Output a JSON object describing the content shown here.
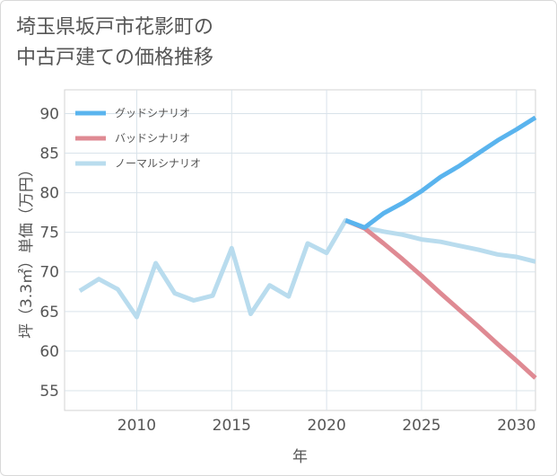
{
  "title": {
    "line1": "埼玉県坂戸市花影町の",
    "line2": "中古戸建ての価格推移"
  },
  "chart_data": {
    "type": "line",
    "title": "埼玉県坂戸市花影町の中古戸建ての価格推移",
    "xlabel": "年",
    "ylabel": "坪（3.3㎡）単価（万円）",
    "xlim": [
      2006.2,
      2031
    ],
    "ylim": [
      52.5,
      93
    ],
    "xticks": [
      2010,
      2015,
      2020,
      2025,
      2030
    ],
    "yticks": [
      55,
      60,
      65,
      70,
      75,
      80,
      85,
      90
    ],
    "grid": true,
    "legend_position": "top-left",
    "series": [
      {
        "name": "グッドシナリオ",
        "color": "#5ab4ee",
        "x": [
          2021,
          2022,
          2023,
          2024,
          2025,
          2026,
          2027,
          2028,
          2029,
          2030,
          2031
        ],
        "y": [
          76.5,
          75.6,
          77.4,
          78.7,
          80.2,
          82.0,
          83.4,
          85.0,
          86.6,
          88.0,
          89.5
        ]
      },
      {
        "name": "バッドシナリオ",
        "color": "#df8a93",
        "x": [
          2021,
          2022,
          2023,
          2024,
          2025,
          2026,
          2027,
          2028,
          2029,
          2030,
          2031
        ],
        "y": [
          76.5,
          75.5,
          73.6,
          71.6,
          69.5,
          67.3,
          65.2,
          63.1,
          60.9,
          58.8,
          56.6
        ]
      },
      {
        "name": "ノーマルシナリオ",
        "color": "#b9dcee",
        "x": [
          2007,
          2008,
          2009,
          2010,
          2011,
          2012,
          2013,
          2014,
          2015,
          2016,
          2017,
          2018,
          2019,
          2020,
          2021,
          2022,
          2023,
          2024,
          2025,
          2026,
          2027,
          2028,
          2029,
          2030,
          2031
        ],
        "y": [
          67.6,
          69.1,
          67.8,
          64.3,
          71.1,
          67.3,
          66.4,
          67.0,
          73.0,
          64.7,
          68.3,
          66.9,
          73.6,
          72.4,
          76.5,
          75.6,
          75.1,
          74.7,
          74.1,
          73.8,
          73.3,
          72.8,
          72.2,
          71.9,
          71.3
        ]
      }
    ]
  }
}
